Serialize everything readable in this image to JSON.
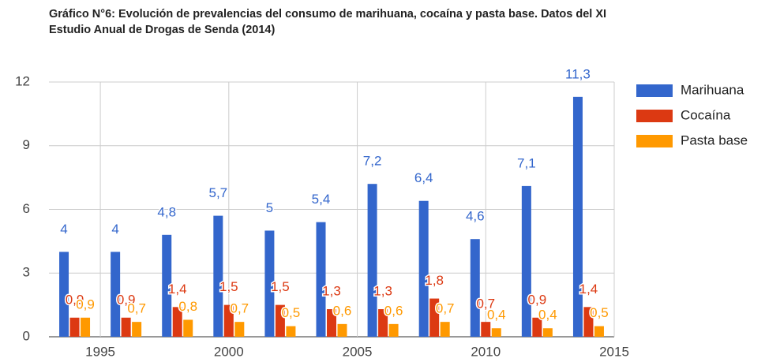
{
  "chart_data": {
    "type": "bar",
    "title": "Gráfico N°6: Evolución de prevalencias del consumo de marihuana, cocaína y pasta base. Datos del XI Estudio Anual de Drogas de Senda (2014)",
    "x": [
      1994,
      1996,
      1998,
      2000,
      2002,
      2004,
      2006,
      2008,
      2010,
      2012,
      2014
    ],
    "series": [
      {
        "name": "Marihuana",
        "color": "#3366cc",
        "values": [
          4,
          4,
          4.8,
          5.7,
          5,
          5.4,
          7.2,
          6.4,
          4.6,
          7.1,
          11.3
        ],
        "value_labels": [
          "4",
          "4",
          "4,8",
          "5,7",
          "5",
          "5,4",
          "7,2",
          "6,4",
          "4,6",
          "7,1",
          "11,3"
        ]
      },
      {
        "name": "Cocaína",
        "color": "#dc3912",
        "values": [
          0.9,
          0.9,
          1.4,
          1.5,
          1.5,
          1.3,
          1.3,
          1.8,
          0.7,
          0.9,
          1.4
        ],
        "value_labels": [
          "0,9",
          "0,9",
          "1,4",
          "1,5",
          "1,5",
          "1,3",
          "1,3",
          "1,8",
          "0,7",
          "0,9",
          "1,4"
        ]
      },
      {
        "name": "Pasta base",
        "color": "#ff9900",
        "values": [
          0.9,
          0.7,
          0.8,
          0.7,
          0.5,
          0.6,
          0.6,
          0.7,
          0.4,
          0.4,
          0.5
        ],
        "value_labels": [
          "0,9",
          "0,7",
          "0,8",
          "0,7",
          "0,5",
          "0,6",
          "0,6",
          "0,7",
          "0,4",
          "0,4",
          "0,5"
        ]
      }
    ],
    "xlim": [
      1993,
      2015
    ],
    "xticks": [
      1995,
      2000,
      2005,
      2010,
      2015
    ],
    "ylim": [
      0,
      12
    ],
    "yticks": [
      0,
      3,
      6,
      9,
      12
    ],
    "grid": true,
    "legend": "right"
  }
}
